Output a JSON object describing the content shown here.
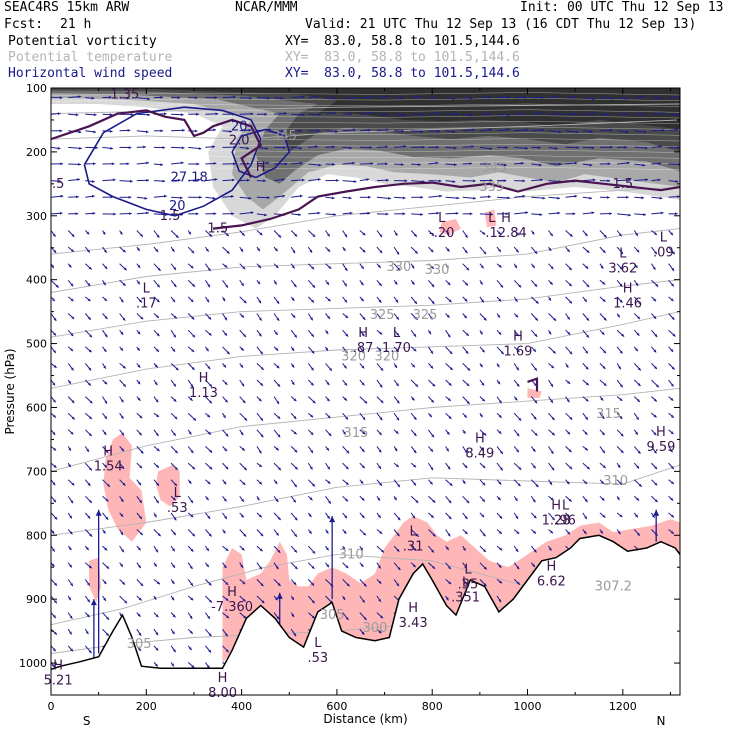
{
  "header": {
    "model": "SEAC4RS 15km ARW",
    "org": "NCAR/MMM",
    "init": "Init: 00 UTC Thu 12 Sep 13",
    "fcst_label": "Fcst:",
    "fcst_value": "21 h",
    "valid": "Valid: 21 UTC Thu 12 Sep 13 (16 CDT Thu 12 Sep 13)",
    "fields": [
      {
        "name": "Potential vorticity",
        "xy": "XY=  83.0, 58.8 to 101.5,144.6",
        "color": "#000000"
      },
      {
        "name": "Potential temperature",
        "xy": "XY=  83.0, 58.8 to 101.5,144.6",
        "color": "#b4b4b4"
      },
      {
        "name": "Horizontal wind speed",
        "xy": "XY=  83.0, 58.8 to 101.5,144.6",
        "color": "#1a1a8a"
      }
    ]
  },
  "chart_data": {
    "type": "cross-section",
    "xlabel": "Distance (km)",
    "ylabel": "Pressure (hPa)",
    "xlim": [
      0,
      1320
    ],
    "ylim": [
      1050,
      100
    ],
    "x_ticks": [
      0,
      200,
      400,
      600,
      800,
      1000,
      1200
    ],
    "y_ticks": [
      100,
      200,
      300,
      400,
      500,
      600,
      700,
      800,
      900,
      1000
    ],
    "endpoints": [
      {
        "x": 75,
        "label": "S"
      },
      {
        "x": 1280,
        "label": "N"
      }
    ],
    "terrain": [
      [
        0,
        1010
      ],
      [
        20,
        1005
      ],
      [
        60,
        998
      ],
      [
        100,
        990
      ],
      [
        130,
        950
      ],
      [
        150,
        925
      ],
      [
        170,
        960
      ],
      [
        190,
        1005
      ],
      [
        230,
        1008
      ],
      [
        300,
        1008
      ],
      [
        360,
        1008
      ],
      [
        380,
        980
      ],
      [
        410,
        930
      ],
      [
        440,
        910
      ],
      [
        470,
        930
      ],
      [
        500,
        960
      ],
      [
        530,
        975
      ],
      [
        560,
        920
      ],
      [
        590,
        905
      ],
      [
        610,
        950
      ],
      [
        640,
        960
      ],
      [
        680,
        965
      ],
      [
        710,
        960
      ],
      [
        730,
        900
      ],
      [
        760,
        860
      ],
      [
        780,
        845
      ],
      [
        800,
        870
      ],
      [
        830,
        910
      ],
      [
        850,
        925
      ],
      [
        880,
        870
      ],
      [
        910,
        880
      ],
      [
        940,
        920
      ],
      [
        970,
        900
      ],
      [
        1000,
        870
      ],
      [
        1030,
        840
      ],
      [
        1060,
        835
      ],
      [
        1090,
        820
      ],
      [
        1110,
        805
      ],
      [
        1150,
        800
      ],
      [
        1180,
        810
      ],
      [
        1210,
        825
      ],
      [
        1250,
        820
      ],
      [
        1280,
        810
      ],
      [
        1310,
        820
      ],
      [
        1320,
        830
      ]
    ],
    "colors": {
      "terrain_fill": "#ffffff",
      "pv_shade": "#404040",
      "pv_contour": "#4a1450",
      "theta": "#b4b4b4",
      "speed": "#1a1a8a",
      "wind_arrows": "#1c1c90",
      "low_pv_fill": "#ffb6b6"
    },
    "theta_labels": [
      {
        "x": 490,
        "p": 175,
        "label": "345"
      },
      {
        "x": 930,
        "p": 225,
        "label": "345"
      },
      {
        "x": 925,
        "p": 255,
        "label": "335"
      },
      {
        "x": 730,
        "p": 380,
        "label": "330"
      },
      {
        "x": 810,
        "p": 385,
        "label": "330"
      },
      {
        "x": 695,
        "p": 455,
        "label": "325"
      },
      {
        "x": 785,
        "p": 455,
        "label": "325"
      },
      {
        "x": 635,
        "p": 520,
        "label": "320"
      },
      {
        "x": 705,
        "p": 520,
        "label": "320"
      },
      {
        "x": 640,
        "p": 640,
        "label": "315"
      },
      {
        "x": 1170,
        "p": 610,
        "label": "315"
      },
      {
        "x": 1185,
        "p": 715,
        "label": "310"
      },
      {
        "x": 630,
        "p": 830,
        "label": "310"
      },
      {
        "x": 590,
        "p": 925,
        "label": "305"
      },
      {
        "x": 680,
        "p": 945,
        "label": "300"
      },
      {
        "x": 1180,
        "p": 880,
        "label": "307.2"
      },
      {
        "x": 185,
        "p": 970,
        "label": "305"
      }
    ],
    "pv_labels": [
      {
        "x": 155,
        "p": 110,
        "label": "1.35"
      },
      {
        "x": 395,
        "p": 182,
        "label": "2.0"
      },
      {
        "x": 250,
        "p": 300,
        "label": "1.5"
      },
      {
        "x": 350,
        "p": 320,
        "label": "1.5"
      },
      {
        "x": 1200,
        "p": 250,
        "label": "1.5"
      },
      {
        "x": 15,
        "p": 250,
        "label": ".5"
      }
    ],
    "speed_labels": [
      {
        "x": 290,
        "p": 240,
        "label": "27.18"
      },
      {
        "x": 265,
        "p": 285,
        "label": "20"
      },
      {
        "x": 395,
        "p": 160,
        "label": "20"
      }
    ],
    "extrema": [
      {
        "x": 440,
        "p": 230,
        "kind": "H",
        "value": ""
      },
      {
        "x": 820,
        "p": 310,
        "kind": "L",
        "value": "-.20"
      },
      {
        "x": 925,
        "p": 310,
        "kind": "L",
        "value": ""
      },
      {
        "x": 955,
        "p": 310,
        "kind": "H",
        "value": ".12.84"
      },
      {
        "x": 1285,
        "p": 340,
        "kind": "L",
        "value": ".09"
      },
      {
        "x": 1200,
        "p": 365,
        "kind": "L",
        "value": "3.62"
      },
      {
        "x": 200,
        "p": 420,
        "kind": "L",
        "value": ".17"
      },
      {
        "x": 1210,
        "p": 420,
        "kind": "H",
        "value": "1.46"
      },
      {
        "x": 655,
        "p": 490,
        "kind": "H",
        "value": ".87"
      },
      {
        "x": 725,
        "p": 490,
        "kind": "L",
        "value": "1.70"
      },
      {
        "x": 980,
        "p": 495,
        "kind": "H",
        "value": "1.69"
      },
      {
        "x": 320,
        "p": 560,
        "kind": "H",
        "value": "1.13"
      },
      {
        "x": 900,
        "p": 655,
        "kind": "H",
        "value": "8.49"
      },
      {
        "x": 1280,
        "p": 645,
        "kind": "H",
        "value": "9.59"
      },
      {
        "x": 120,
        "p": 675,
        "kind": "H",
        "value": "1.54"
      },
      {
        "x": 265,
        "p": 740,
        "kind": "L",
        "value": ".53"
      },
      {
        "x": 1060,
        "p": 760,
        "kind": "H",
        "value": "1.28"
      },
      {
        "x": 1080,
        "p": 760,
        "kind": "L",
        "value": ".96"
      },
      {
        "x": 760,
        "p": 800,
        "kind": "L",
        "value": ".31"
      },
      {
        "x": 875,
        "p": 860,
        "kind": "L",
        "value": ".35"
      },
      {
        "x": 870,
        "p": 880,
        "kind": "L",
        "value": ".351"
      },
      {
        "x": 1050,
        "p": 855,
        "kind": "H",
        "value": "6.62"
      },
      {
        "x": 380,
        "p": 895,
        "kind": "H",
        "value": "-7.360"
      },
      {
        "x": 760,
        "p": 920,
        "kind": "H",
        "value": "3.43"
      },
      {
        "x": 560,
        "p": 975,
        "kind": "L",
        "value": ".53"
      },
      {
        "x": 360,
        "p": 1030,
        "kind": "H",
        "value": "8.00"
      },
      {
        "x": 15,
        "p": 1010,
        "kind": "H",
        "value": "5.21"
      }
    ]
  }
}
